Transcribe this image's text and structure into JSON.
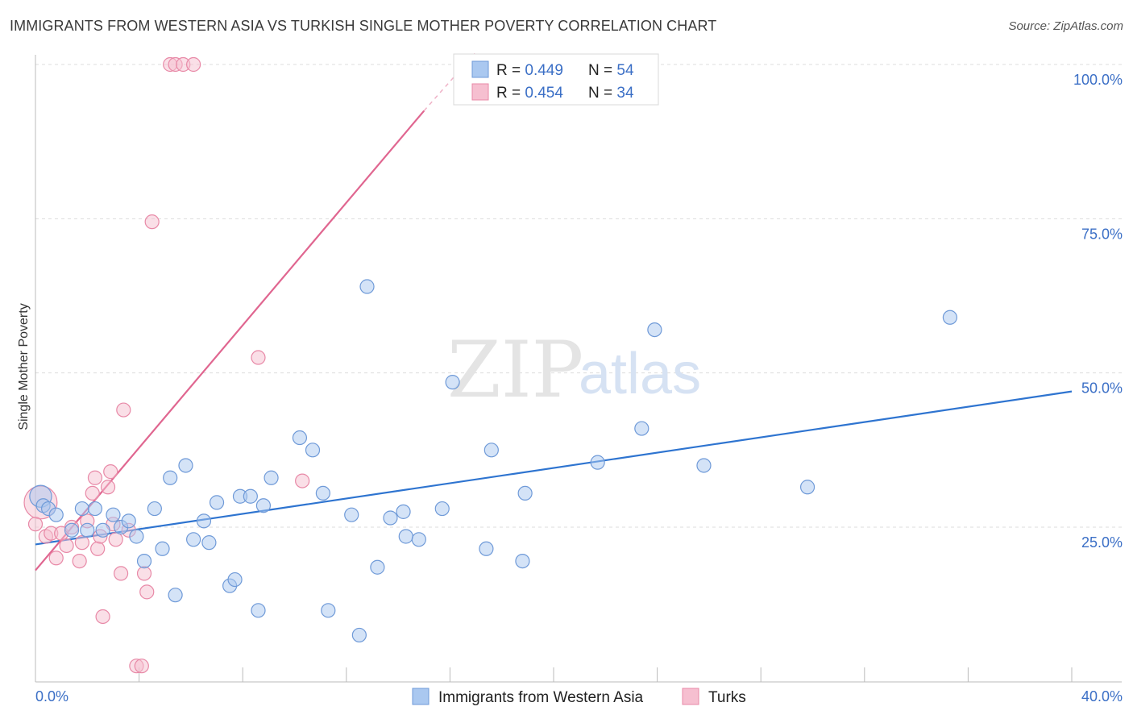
{
  "title": "IMMIGRANTS FROM WESTERN ASIA VS TURKISH SINGLE MOTHER POVERTY CORRELATION CHART",
  "source": "Source: ZipAtlas.com",
  "watermark": {
    "zip": "ZIP",
    "atlas": "atlas"
  },
  "colors": {
    "blue_fill": "#aac8f0",
    "blue_stroke": "#6f9ad8",
    "blue_line": "#2e74d0",
    "pink_fill": "#f6bfd0",
    "pink_stroke": "#e889a7",
    "pink_line": "#e06690",
    "tick_text": "#3b6fc6",
    "grid": "#dddddd"
  },
  "legend": {
    "rows": [
      {
        "r_label": "R = ",
        "r_value": "0.449",
        "n_label": "N = ",
        "n_value": "54"
      },
      {
        "r_label": "R = ",
        "r_value": "0.454",
        "n_label": "N = ",
        "n_value": "34"
      }
    ]
  },
  "bottom_legend": [
    "Immigrants from Western Asia",
    "Turks"
  ],
  "chart_data": {
    "type": "scatter",
    "title": "IMMIGRANTS FROM WESTERN ASIA VS TURKISH SINGLE MOTHER POVERTY CORRELATION CHART",
    "xlabel": "",
    "ylabel": "Single Mother Poverty",
    "xlim": [
      0,
      40
    ],
    "ylim": [
      0,
      102
    ],
    "x_tick_labels": [
      "0.0%",
      "40.0%"
    ],
    "y_ticks": [
      25,
      50,
      75,
      100
    ],
    "y_tick_labels": [
      "25.0%",
      "50.0%",
      "75.0%",
      "100.0%"
    ],
    "grid": true,
    "legend_position": "top-center",
    "series": [
      {
        "name": "Immigrants from Western Asia",
        "r": 0.449,
        "n": 54,
        "trend": {
          "x0": 0,
          "y0": 22.2,
          "x1": 40,
          "y1": 47.0
        },
        "points": [
          [
            0.2,
            30,
            1.6
          ],
          [
            0.3,
            28.5,
            1
          ],
          [
            0.5,
            28,
            1
          ],
          [
            0.8,
            27,
            1
          ],
          [
            1.4,
            24.5,
            1
          ],
          [
            1.8,
            28,
            1
          ],
          [
            2.0,
            24.5,
            1
          ],
          [
            2.3,
            28,
            1
          ],
          [
            2.6,
            24.5,
            1
          ],
          [
            3.0,
            27,
            1
          ],
          [
            3.3,
            25,
            1
          ],
          [
            3.6,
            26,
            1
          ],
          [
            3.9,
            23.5,
            1
          ],
          [
            4.2,
            19.5,
            1
          ],
          [
            4.6,
            28,
            1
          ],
          [
            4.9,
            21.5,
            1
          ],
          [
            5.2,
            33,
            1
          ],
          [
            5.4,
            14,
            1
          ],
          [
            5.8,
            35,
            1
          ],
          [
            6.1,
            23,
            1
          ],
          [
            6.5,
            26,
            1
          ],
          [
            6.7,
            22.5,
            1
          ],
          [
            7.0,
            29,
            1
          ],
          [
            7.5,
            15.5,
            1
          ],
          [
            7.7,
            16.5,
            1
          ],
          [
            7.9,
            30,
            1
          ],
          [
            8.3,
            30,
            1
          ],
          [
            8.6,
            11.5,
            1
          ],
          [
            8.8,
            28.5,
            1
          ],
          [
            9.1,
            33,
            1
          ],
          [
            10.2,
            39.5,
            1
          ],
          [
            10.7,
            37.5,
            1
          ],
          [
            11.1,
            30.5,
            1
          ],
          [
            11.3,
            11.5,
            1
          ],
          [
            12.2,
            27,
            1
          ],
          [
            12.5,
            7.5,
            1
          ],
          [
            12.8,
            64,
            1
          ],
          [
            13.2,
            18.5,
            1
          ],
          [
            13.7,
            26.5,
            1
          ],
          [
            14.2,
            27.5,
            1
          ],
          [
            14.3,
            23.5,
            1
          ],
          [
            14.8,
            23,
            1
          ],
          [
            15.7,
            28,
            1
          ],
          [
            16.1,
            48.5,
            1
          ],
          [
            17.4,
            21.5,
            1
          ],
          [
            17.6,
            37.5,
            1
          ],
          [
            18.8,
            19.5,
            1
          ],
          [
            18.9,
            30.5,
            1
          ],
          [
            21.7,
            35.5,
            1
          ],
          [
            23.4,
            41,
            1
          ],
          [
            23.9,
            57,
            1
          ],
          [
            25.8,
            35,
            1
          ],
          [
            29.8,
            31.5,
            1
          ],
          [
            35.3,
            59,
            1
          ]
        ]
      },
      {
        "name": "Turks",
        "r": 0.454,
        "n": 34,
        "trend_solid": {
          "x0": 0,
          "y0": 18.0,
          "x1": 15.0,
          "y1": 92.5
        },
        "trend_dashed": {
          "x0": 15.0,
          "y0": 92.5,
          "x1": 17.0,
          "y1": 102.0
        },
        "points": [
          [
            0.2,
            29,
            2.4
          ],
          [
            0.4,
            23.5,
            1
          ],
          [
            0.6,
            24,
            1
          ],
          [
            0.8,
            20,
            1
          ],
          [
            1.0,
            24,
            1
          ],
          [
            1.2,
            22,
            1
          ],
          [
            1.4,
            25,
            1
          ],
          [
            1.7,
            19.5,
            1
          ],
          [
            1.8,
            22.5,
            1
          ],
          [
            2.0,
            26,
            1
          ],
          [
            2.2,
            30.5,
            1
          ],
          [
            2.3,
            33,
            1
          ],
          [
            2.4,
            21.5,
            1
          ],
          [
            2.5,
            23.5,
            1
          ],
          [
            2.6,
            10.5,
            1
          ],
          [
            2.8,
            31.5,
            1
          ],
          [
            2.9,
            34,
            1
          ],
          [
            3.0,
            25.5,
            1
          ],
          [
            3.1,
            23,
            1
          ],
          [
            3.3,
            17.5,
            1
          ],
          [
            3.4,
            44,
            1
          ],
          [
            3.6,
            24.5,
            1
          ],
          [
            3.9,
            2.5,
            1
          ],
          [
            4.1,
            2.5,
            1
          ],
          [
            4.2,
            17.5,
            1
          ],
          [
            4.3,
            14.5,
            1
          ],
          [
            4.5,
            74.5,
            1
          ],
          [
            5.2,
            100,
            1
          ],
          [
            5.4,
            100,
            1
          ],
          [
            5.7,
            100,
            1
          ],
          [
            6.1,
            100,
            1
          ],
          [
            8.6,
            52.5,
            1
          ],
          [
            10.3,
            32.5,
            1
          ],
          [
            0.0,
            25.5,
            1
          ]
        ]
      }
    ]
  }
}
